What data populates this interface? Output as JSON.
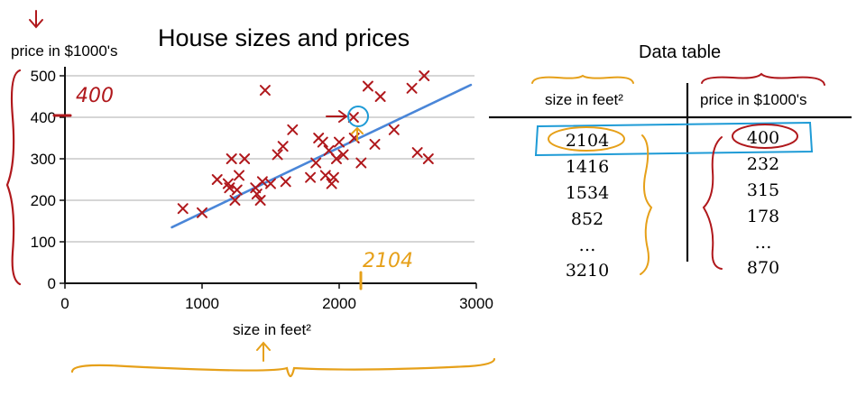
{
  "chart_data": {
    "type": "scatter",
    "title": "House sizes and prices",
    "xlabel": "size in feet²",
    "ylabel": "price in $1000's",
    "xlim": [
      0,
      3000
    ],
    "ylim": [
      0,
      500
    ],
    "x_ticks": [
      0,
      1000,
      2000,
      3000
    ],
    "y_ticks": [
      0,
      100,
      200,
      300,
      400,
      500
    ],
    "grid": "horizontal",
    "marker": "x",
    "points": [
      {
        "x": 860,
        "y": 180
      },
      {
        "x": 1000,
        "y": 170
      },
      {
        "x": 1110,
        "y": 250
      },
      {
        "x": 1190,
        "y": 240
      },
      {
        "x": 1200,
        "y": 230
      },
      {
        "x": 1215,
        "y": 300
      },
      {
        "x": 1240,
        "y": 200
      },
      {
        "x": 1255,
        "y": 225
      },
      {
        "x": 1270,
        "y": 260
      },
      {
        "x": 1310,
        "y": 300
      },
      {
        "x": 1390,
        "y": 230
      },
      {
        "x": 1400,
        "y": 215
      },
      {
        "x": 1425,
        "y": 200
      },
      {
        "x": 1440,
        "y": 245
      },
      {
        "x": 1460,
        "y": 465
      },
      {
        "x": 1500,
        "y": 240
      },
      {
        "x": 1550,
        "y": 310
      },
      {
        "x": 1590,
        "y": 330
      },
      {
        "x": 1610,
        "y": 245
      },
      {
        "x": 1660,
        "y": 370
      },
      {
        "x": 1790,
        "y": 255
      },
      {
        "x": 1830,
        "y": 290
      },
      {
        "x": 1850,
        "y": 350
      },
      {
        "x": 1880,
        "y": 340
      },
      {
        "x": 1900,
        "y": 260
      },
      {
        "x": 1925,
        "y": 320
      },
      {
        "x": 1945,
        "y": 240
      },
      {
        "x": 1960,
        "y": 255
      },
      {
        "x": 1980,
        "y": 300
      },
      {
        "x": 2000,
        "y": 340
      },
      {
        "x": 2030,
        "y": 310
      },
      {
        "x": 2104,
        "y": 400
      },
      {
        "x": 2110,
        "y": 350
      },
      {
        "x": 2160,
        "y": 290
      },
      {
        "x": 2210,
        "y": 475
      },
      {
        "x": 2260,
        "y": 335
      },
      {
        "x": 2300,
        "y": 450
      },
      {
        "x": 2400,
        "y": 370
      },
      {
        "x": 2530,
        "y": 470
      },
      {
        "x": 2570,
        "y": 315
      },
      {
        "x": 2620,
        "y": 500
      },
      {
        "x": 2650,
        "y": 300
      }
    ],
    "fit_line": {
      "x": [
        780,
        2960
      ],
      "y": [
        135,
        478
      ],
      "color": "#4a86d8"
    },
    "point_color": "#b0181c",
    "highlight_point": {
      "x": 2104,
      "y": 400
    }
  },
  "annotations": {
    "price_value": "400",
    "size_value": "2104",
    "red_ink": "#b0181c",
    "orange_ink": "#e6a019",
    "blue_ink": "#1e9bd6"
  },
  "table": {
    "title": "Data table",
    "headers": [
      "size in feet²",
      "price in $1000's"
    ],
    "rows": [
      [
        "2104",
        "400"
      ],
      [
        "1416",
        "232"
      ],
      [
        "1534",
        "315"
      ],
      [
        "852",
        "178"
      ],
      [
        "…",
        "…"
      ],
      [
        "3210",
        "870"
      ]
    ]
  }
}
